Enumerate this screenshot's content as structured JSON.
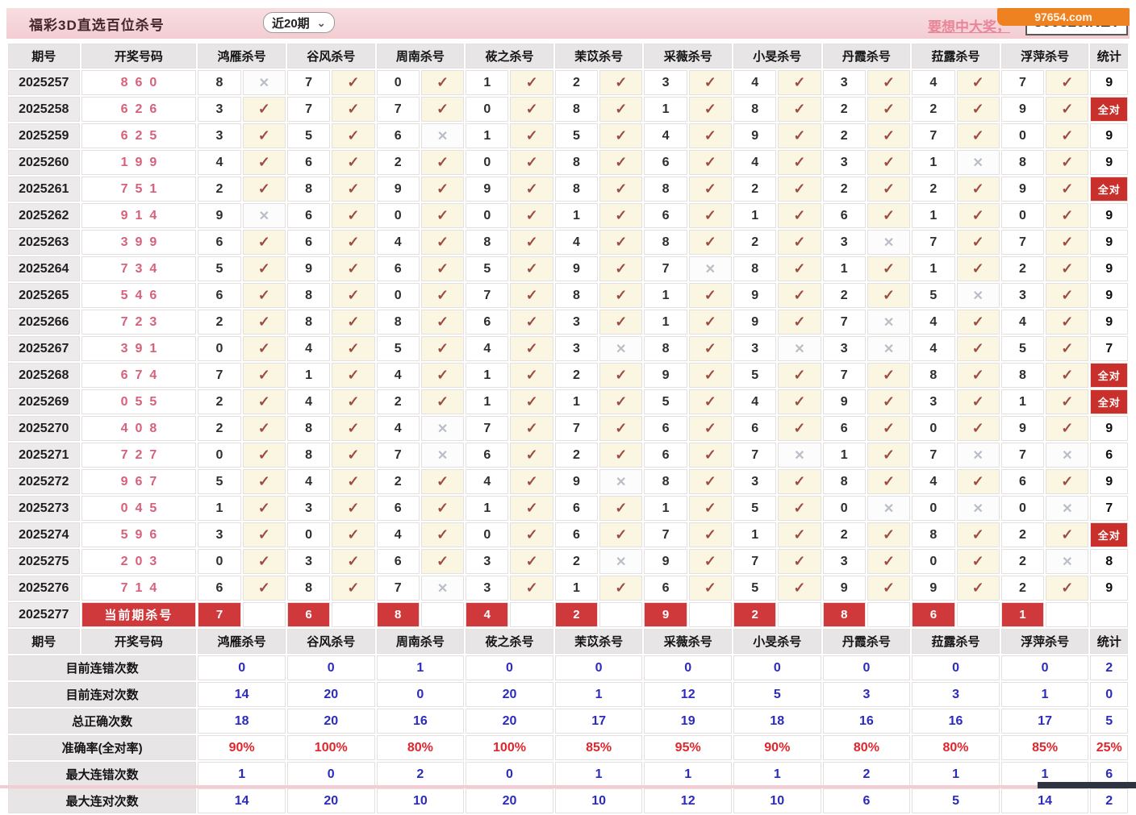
{
  "header": {
    "title": "福彩3D直选百位杀号",
    "range_selected": "近20期",
    "promo_link": "要想中大奖，",
    "promo_site": "800820.NET",
    "corner_badge": "97654.com"
  },
  "icons": {
    "check": "✓",
    "cross": "✕",
    "chevron_down": "⌄"
  },
  "labels": {
    "all_correct": "全对",
    "current_kill": "当前期杀号"
  },
  "colors": {
    "accent_red": "#d0393b",
    "all_correct_bg": "#c9302c",
    "check_mark": "#9d4c43",
    "cross_mark": "#b9bec6",
    "draw_number": "#d7607a",
    "stat_blue": "#2b2bbd",
    "stat_red": "#e0262c",
    "banner_pink": "#f2cdd2",
    "badge_orange": "#ee8120"
  },
  "columns": [
    "期号",
    "开奖号码",
    "鸿雁杀号",
    "谷风杀号",
    "周南杀号",
    "莜之杀号",
    "茉苡杀号",
    "采薇杀号",
    "小旻杀号",
    "丹霞杀号",
    "菈露杀号",
    "浮萍杀号",
    "统计"
  ],
  "rows": [
    {
      "period": "2025257",
      "draw": "860",
      "kills": [
        "8",
        "7",
        "0",
        "1",
        "2",
        "3",
        "4",
        "3",
        "4",
        "7"
      ],
      "marks": [
        "x",
        "v",
        "v",
        "v",
        "v",
        "v",
        "v",
        "v",
        "v",
        "v"
      ],
      "total": "9"
    },
    {
      "period": "2025258",
      "draw": "626",
      "kills": [
        "3",
        "7",
        "7",
        "0",
        "8",
        "1",
        "8",
        "2",
        "2",
        "9"
      ],
      "marks": [
        "v",
        "v",
        "v",
        "v",
        "v",
        "v",
        "v",
        "v",
        "v",
        "v"
      ],
      "total": "全对"
    },
    {
      "period": "2025259",
      "draw": "625",
      "kills": [
        "3",
        "5",
        "6",
        "1",
        "5",
        "4",
        "9",
        "2",
        "7",
        "0"
      ],
      "marks": [
        "v",
        "v",
        "x",
        "v",
        "v",
        "v",
        "v",
        "v",
        "v",
        "v"
      ],
      "total": "9"
    },
    {
      "period": "2025260",
      "draw": "199",
      "kills": [
        "4",
        "6",
        "2",
        "0",
        "8",
        "6",
        "4",
        "3",
        "1",
        "8"
      ],
      "marks": [
        "v",
        "v",
        "v",
        "v",
        "v",
        "v",
        "v",
        "v",
        "x",
        "v"
      ],
      "total": "9"
    },
    {
      "period": "2025261",
      "draw": "751",
      "kills": [
        "2",
        "8",
        "9",
        "9",
        "8",
        "8",
        "2",
        "2",
        "2",
        "9"
      ],
      "marks": [
        "v",
        "v",
        "v",
        "v",
        "v",
        "v",
        "v",
        "v",
        "v",
        "v"
      ],
      "total": "全对"
    },
    {
      "period": "2025262",
      "draw": "914",
      "kills": [
        "9",
        "6",
        "0",
        "0",
        "1",
        "6",
        "1",
        "6",
        "1",
        "0"
      ],
      "marks": [
        "x",
        "v",
        "v",
        "v",
        "v",
        "v",
        "v",
        "v",
        "v",
        "v"
      ],
      "total": "9"
    },
    {
      "period": "2025263",
      "draw": "399",
      "kills": [
        "6",
        "6",
        "4",
        "8",
        "4",
        "8",
        "2",
        "3",
        "7",
        "7"
      ],
      "marks": [
        "v",
        "v",
        "v",
        "v",
        "v",
        "v",
        "v",
        "x",
        "v",
        "v"
      ],
      "total": "9"
    },
    {
      "period": "2025264",
      "draw": "734",
      "kills": [
        "5",
        "9",
        "6",
        "5",
        "9",
        "7",
        "8",
        "1",
        "1",
        "2"
      ],
      "marks": [
        "v",
        "v",
        "v",
        "v",
        "v",
        "x",
        "v",
        "v",
        "v",
        "v"
      ],
      "total": "9"
    },
    {
      "period": "2025265",
      "draw": "546",
      "kills": [
        "6",
        "8",
        "0",
        "7",
        "8",
        "1",
        "9",
        "2",
        "5",
        "3"
      ],
      "marks": [
        "v",
        "v",
        "v",
        "v",
        "v",
        "v",
        "v",
        "v",
        "x",
        "v"
      ],
      "total": "9"
    },
    {
      "period": "2025266",
      "draw": "723",
      "kills": [
        "2",
        "8",
        "8",
        "6",
        "3",
        "1",
        "9",
        "7",
        "4",
        "4"
      ],
      "marks": [
        "v",
        "v",
        "v",
        "v",
        "v",
        "v",
        "v",
        "x",
        "v",
        "v"
      ],
      "total": "9"
    },
    {
      "period": "2025267",
      "draw": "391",
      "kills": [
        "0",
        "4",
        "5",
        "4",
        "3",
        "8",
        "3",
        "3",
        "4",
        "5"
      ],
      "marks": [
        "v",
        "v",
        "v",
        "v",
        "x",
        "v",
        "x",
        "x",
        "v",
        "v"
      ],
      "total": "7"
    },
    {
      "period": "2025268",
      "draw": "674",
      "kills": [
        "7",
        "1",
        "4",
        "1",
        "2",
        "9",
        "5",
        "7",
        "8",
        "8"
      ],
      "marks": [
        "v",
        "v",
        "v",
        "v",
        "v",
        "v",
        "v",
        "v",
        "v",
        "v"
      ],
      "total": "全对"
    },
    {
      "period": "2025269",
      "draw": "055",
      "kills": [
        "2",
        "4",
        "2",
        "1",
        "1",
        "5",
        "4",
        "9",
        "3",
        "1"
      ],
      "marks": [
        "v",
        "v",
        "v",
        "v",
        "v",
        "v",
        "v",
        "v",
        "v",
        "v"
      ],
      "total": "全对"
    },
    {
      "period": "2025270",
      "draw": "408",
      "kills": [
        "2",
        "8",
        "4",
        "7",
        "7",
        "6",
        "6",
        "6",
        "0",
        "9"
      ],
      "marks": [
        "v",
        "v",
        "x",
        "v",
        "v",
        "v",
        "v",
        "v",
        "v",
        "v"
      ],
      "total": "9"
    },
    {
      "period": "2025271",
      "draw": "727",
      "kills": [
        "0",
        "8",
        "7",
        "6",
        "2",
        "6",
        "7",
        "1",
        "7",
        "7"
      ],
      "marks": [
        "v",
        "v",
        "x",
        "v",
        "v",
        "v",
        "x",
        "v",
        "x",
        "x"
      ],
      "total": "6"
    },
    {
      "period": "2025272",
      "draw": "967",
      "kills": [
        "5",
        "4",
        "2",
        "4",
        "9",
        "8",
        "3",
        "8",
        "4",
        "6"
      ],
      "marks": [
        "v",
        "v",
        "v",
        "v",
        "x",
        "v",
        "v",
        "v",
        "v",
        "v"
      ],
      "total": "9"
    },
    {
      "period": "2025273",
      "draw": "045",
      "kills": [
        "1",
        "3",
        "6",
        "1",
        "6",
        "1",
        "5",
        "0",
        "0",
        "0"
      ],
      "marks": [
        "v",
        "v",
        "v",
        "v",
        "v",
        "v",
        "v",
        "x",
        "x",
        "x"
      ],
      "total": "7"
    },
    {
      "period": "2025274",
      "draw": "596",
      "kills": [
        "3",
        "0",
        "4",
        "0",
        "6",
        "7",
        "1",
        "2",
        "8",
        "2"
      ],
      "marks": [
        "v",
        "v",
        "v",
        "v",
        "v",
        "v",
        "v",
        "v",
        "v",
        "v"
      ],
      "total": "全对"
    },
    {
      "period": "2025275",
      "draw": "203",
      "kills": [
        "0",
        "3",
        "6",
        "3",
        "2",
        "9",
        "7",
        "3",
        "0",
        "2"
      ],
      "marks": [
        "v",
        "v",
        "v",
        "v",
        "x",
        "v",
        "v",
        "v",
        "v",
        "x"
      ],
      "total": "8"
    },
    {
      "period": "2025276",
      "draw": "714",
      "kills": [
        "6",
        "8",
        "7",
        "3",
        "1",
        "6",
        "5",
        "9",
        "9",
        "2"
      ],
      "marks": [
        "v",
        "v",
        "x",
        "v",
        "v",
        "v",
        "v",
        "v",
        "v",
        "v"
      ],
      "total": "9"
    }
  ],
  "current_row": {
    "period": "2025277",
    "label": "当前期杀号",
    "kills": [
      "7",
      "6",
      "8",
      "4",
      "2",
      "9",
      "2",
      "8",
      "6",
      "1"
    ]
  },
  "stats": [
    {
      "label": "目前连错次数",
      "style": "blue",
      "values": [
        "0",
        "0",
        "1",
        "0",
        "0",
        "0",
        "0",
        "0",
        "0",
        "0"
      ],
      "total": "2"
    },
    {
      "label": "目前连对次数",
      "style": "blue",
      "values": [
        "14",
        "20",
        "0",
        "20",
        "1",
        "12",
        "5",
        "3",
        "3",
        "1"
      ],
      "total": "0"
    },
    {
      "label": "总正确次数",
      "style": "blue",
      "values": [
        "18",
        "20",
        "16",
        "20",
        "17",
        "19",
        "18",
        "16",
        "16",
        "17"
      ],
      "total": "5"
    },
    {
      "label": "准确率(全对率)",
      "style": "red",
      "values": [
        "90%",
        "100%",
        "80%",
        "100%",
        "85%",
        "95%",
        "90%",
        "80%",
        "80%",
        "85%"
      ],
      "total": "25%"
    },
    {
      "label": "最大连错次数",
      "style": "blue",
      "values": [
        "1",
        "0",
        "2",
        "0",
        "1",
        "1",
        "1",
        "2",
        "1",
        "1"
      ],
      "total": "6"
    },
    {
      "label": "最大连对次数",
      "style": "blue",
      "values": [
        "14",
        "20",
        "10",
        "20",
        "10",
        "12",
        "10",
        "6",
        "5",
        "14"
      ],
      "total": "2"
    }
  ]
}
